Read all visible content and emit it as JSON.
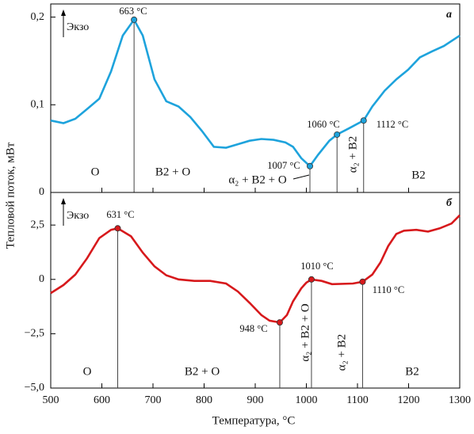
{
  "xlabel": "Температура, °C",
  "ylabel": "Тепловой поток, мВт",
  "chart_data": [
    {
      "type": "line",
      "panel_label": "а",
      "note": "Экзо",
      "xlim": [
        500,
        1300
      ],
      "xticks": [
        500,
        600,
        700,
        800,
        900,
        1000,
        1100,
        1200,
        1300
      ],
      "ylim": [
        0,
        0.215
      ],
      "yticks": [
        {
          "value": 0,
          "label": "0"
        },
        {
          "value": 0.1,
          "label": "0,1"
        },
        {
          "value": 0.2,
          "label": "0,2"
        }
      ],
      "x": [
        500,
        525,
        548,
        571,
        595,
        618,
        641,
        663,
        680,
        703,
        726,
        750,
        773,
        796,
        819,
        843,
        866,
        889,
        912,
        936,
        959,
        974,
        990,
        1007,
        1023,
        1045,
        1060,
        1083,
        1112,
        1129,
        1153,
        1176,
        1199,
        1222,
        1246,
        1269,
        1300
      ],
      "series": [
        {
          "color": "#1ea3dc",
          "values": [
            0.082,
            0.079,
            0.084,
            0.095,
            0.107,
            0.138,
            0.179,
            0.197,
            0.179,
            0.129,
            0.104,
            0.098,
            0.086,
            0.07,
            0.052,
            0.051,
            0.055,
            0.059,
            0.061,
            0.06,
            0.057,
            0.052,
            0.039,
            0.03,
            0.043,
            0.059,
            0.066,
            0.073,
            0.082,
            0.098,
            0.116,
            0.129,
            0.14,
            0.154,
            0.161,
            0.167,
            0.179
          ]
        }
      ],
      "points": {
        "x": [
          663,
          1007,
          1060,
          1112
        ],
        "y": [
          0.197,
          0.03,
          0.066,
          0.082
        ],
        "labels": [
          "663 °C",
          "1007 °C",
          "1060 °C",
          "1112 °C"
        ]
      },
      "phases": [
        "O",
        "B2 + O",
        "α₂ + B2 + O",
        "α₂ + B2",
        "B2"
      ]
    },
    {
      "type": "line",
      "panel_label": "б",
      "note": "Экзо",
      "xlim": [
        500,
        1300
      ],
      "xticks": [
        500,
        600,
        700,
        800,
        900,
        1000,
        1100,
        1200,
        1300
      ],
      "ylim": [
        -5,
        4
      ],
      "yticks": [
        {
          "value": -5,
          "label": "−5,0"
        },
        {
          "value": -2.5,
          "label": "−2,5"
        },
        {
          "value": 0,
          "label": "0"
        },
        {
          "value": 2.5,
          "label": "2,5"
        }
      ],
      "x": [
        500,
        525,
        548,
        571,
        595,
        618,
        631,
        657,
        680,
        703,
        726,
        750,
        781,
        812,
        843,
        866,
        889,
        912,
        928,
        948,
        962,
        974,
        990,
        1000,
        1010,
        1030,
        1050,
        1091,
        1110,
        1129,
        1145,
        1160,
        1176,
        1191,
        1215,
        1238,
        1261,
        1284,
        1300
      ],
      "series": [
        {
          "color": "#d7191c",
          "values": [
            -0.63,
            -0.26,
            0.22,
            0.97,
            1.9,
            2.28,
            2.35,
            1.98,
            1.23,
            0.6,
            0.19,
            0,
            -0.07,
            -0.07,
            -0.19,
            -0.56,
            -1.08,
            -1.64,
            -1.9,
            -1.98,
            -1.64,
            -1.01,
            -0.41,
            -0.15,
            0,
            -0.07,
            -0.22,
            -0.19,
            -0.11,
            0.22,
            0.78,
            1.53,
            2.09,
            2.24,
            2.28,
            2.2,
            2.35,
            2.57,
            2.95
          ]
        }
      ],
      "points": {
        "x": [
          631,
          948,
          1010,
          1110
        ],
        "y": [
          2.35,
          -1.98,
          0,
          -0.11
        ],
        "labels": [
          "631 °C",
          "948 °C",
          "1010 °C",
          "1110 °C"
        ]
      },
      "phases": [
        "O",
        "B2 + O",
        "α₂ + B2 + O",
        "α₂ + B2",
        "B2"
      ]
    }
  ]
}
